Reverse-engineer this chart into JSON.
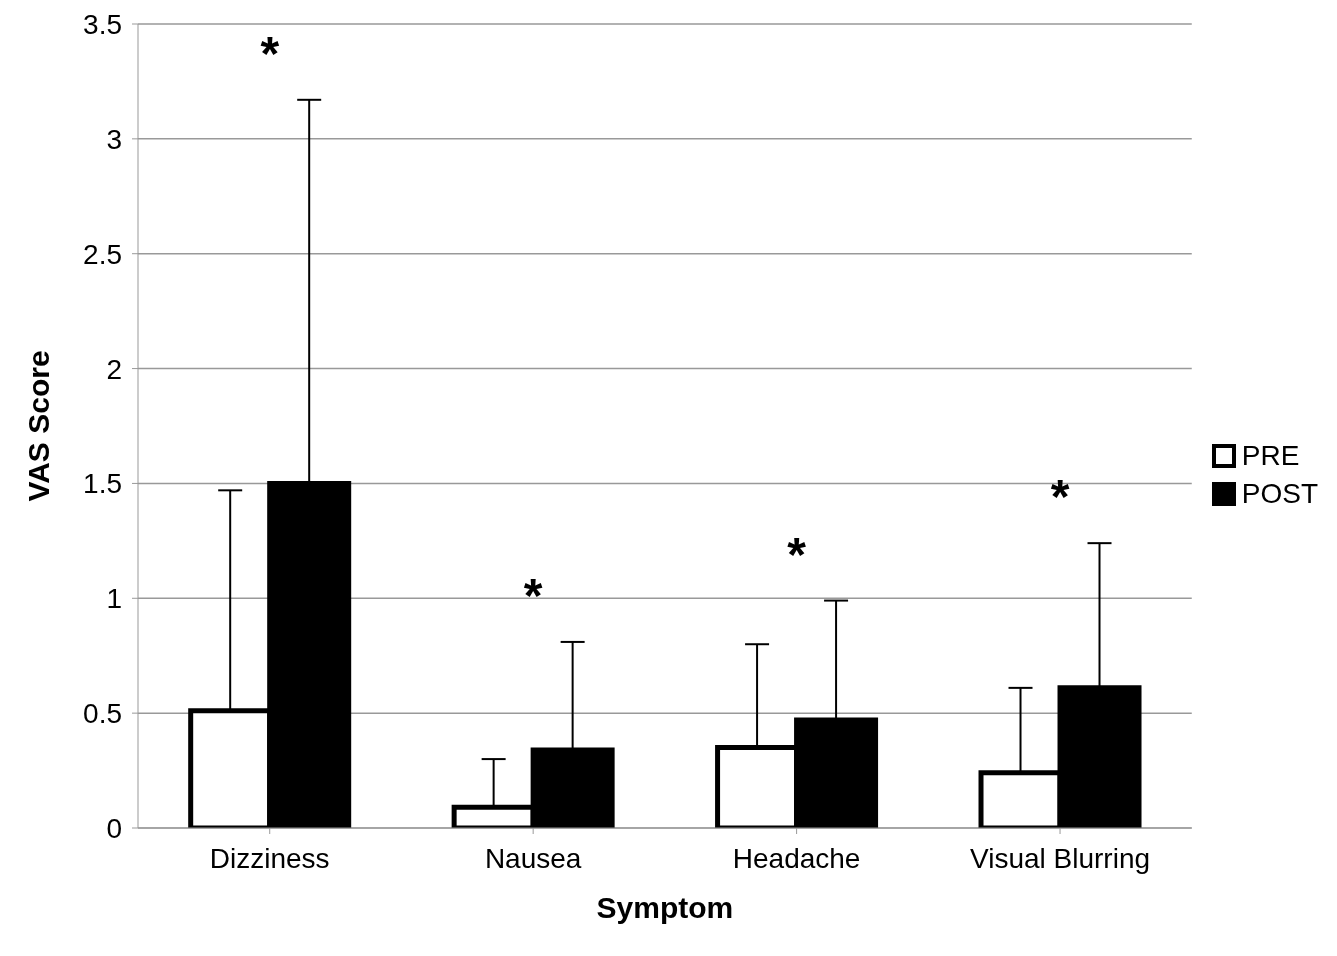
{
  "chart_data": {
    "type": "bar",
    "xlabel": "Symptom",
    "ylabel": "VAS Score",
    "categories": [
      "Dizziness",
      "Nausea",
      "Headache",
      "Visual Blurring"
    ],
    "series": [
      {
        "name": "PRE",
        "color": "#ffffff",
        "values": [
          0.51,
          0.09,
          0.35,
          0.24
        ],
        "errors": [
          [
            0.51,
            1.47
          ],
          [
            0.09,
            0.3
          ],
          [
            0.35,
            0.8
          ],
          [
            0.24,
            0.61
          ]
        ]
      },
      {
        "name": "POST",
        "color": "#000000",
        "values": [
          1.5,
          0.34,
          0.47,
          0.61
        ],
        "errors": [
          [
            1.5,
            3.17
          ],
          [
            0.34,
            0.81
          ],
          [
            0.47,
            0.99
          ],
          [
            0.61,
            1.24
          ]
        ]
      }
    ],
    "ylim": [
      0,
      3.5
    ],
    "yticks": [
      0,
      0.5,
      1,
      1.5,
      2,
      2.5,
      3,
      3.5
    ],
    "grid": "y",
    "legend": "right",
    "annotations": [
      "*",
      "*",
      "*",
      "*"
    ]
  }
}
